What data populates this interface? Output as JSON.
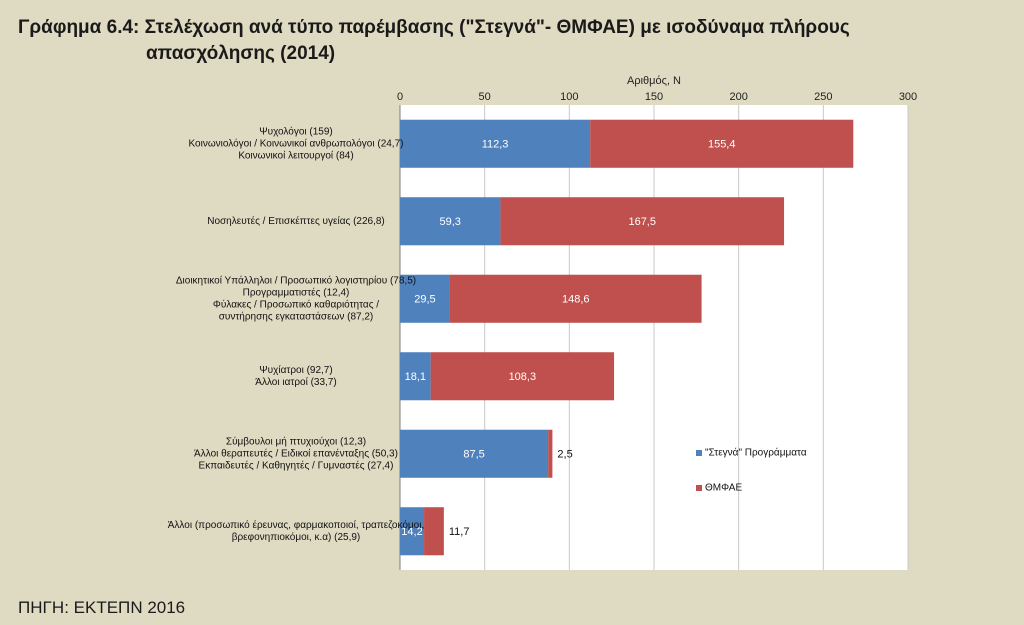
{
  "chart_data": {
    "type": "bar",
    "orientation": "horizontal",
    "stacked": true,
    "title_line1": "Γράφημα 6.4: Στελέχωση ανά τύπο παρέμβασης (\"Στεγνά\"- ΘΜΦΑΕ) με ισοδύναμα πλήρους",
    "title_line2": "απασχόλησης (2014)",
    "xlabel": "Αριθμός, N",
    "xlim": [
      0,
      300
    ],
    "xticks": [
      "0",
      "50",
      "100",
      "150",
      "200",
      "250",
      "300"
    ],
    "grid": true,
    "legend_position": "right",
    "categories": [
      [
        "Ψυχολόγοι (159)",
        "Κοινωνιολόγοι / Κοινωνικοί ανθρωπολόγοι (24,7)",
        "Κοινωνικοί λειτουργοί (84)"
      ],
      [
        "Νοσηλευτές / Επισκέπτες υγείας (226,8)"
      ],
      [
        "Διοικητικοί Υπάλληλοι / Προσωπικό λογιστηρίου (78,5)",
        "Προγραμματιστές (12,4)",
        "Φύλακες / Προσωπικό καθαριότητας /",
        "συντήρησης εγκαταστάσεων (87,2)"
      ],
      [
        "Ψυχίατροι (92,7)",
        "Άλλοι ιατροί (33,7)"
      ],
      [
        "Σύμβουλοι μή πτυχιούχοι (12,3)",
        "Άλλοι θεραπευτές / Ειδικοί επανένταξης (50,3)",
        "Εκπαιδευτές / Καθηγητές / Γυμναστές (27,4)"
      ],
      [
        "Άλλοι (προσωπικό έρευνας, φαρμακοποιοί, τραπεζοκόμοι,",
        "βρεφονηπιοκόμοι, κ.α) (25,9)"
      ]
    ],
    "series": [
      {
        "name": "\"Στεγνά\" Προγράμματα",
        "color": "#4f81bd",
        "values": [
          112.3,
          59.3,
          29.5,
          18.1,
          87.5,
          14.2
        ],
        "labels": [
          "112,3",
          "59,3",
          "29,5",
          "18,1",
          "87,5",
          "14,2"
        ]
      },
      {
        "name": "ΘΜΦΑΕ",
        "color": "#c0504d",
        "values": [
          155.4,
          167.5,
          148.6,
          108.3,
          2.5,
          11.7
        ],
        "labels": [
          "155,4",
          "167,5",
          "148,6",
          "108,3",
          "2,5",
          "11,7"
        ]
      }
    ]
  },
  "source": "ΠΗΓΗ: ΕΚΤΕΠΝ 2016"
}
